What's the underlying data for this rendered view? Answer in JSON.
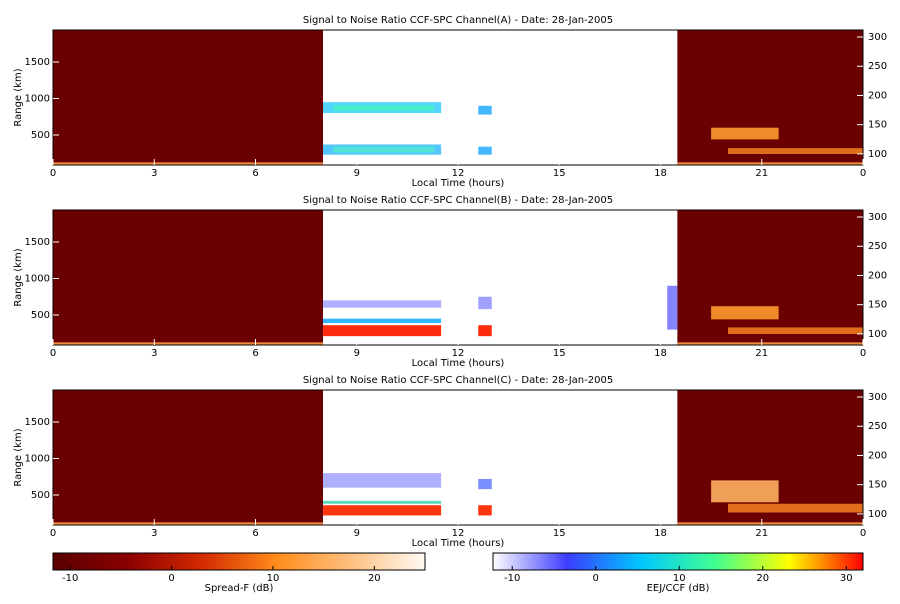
{
  "chart_data": [
    {
      "type": "heatmap",
      "title": "Signal to Noise Ratio CCF-SPC Channel(A) - Date: 28-Jan-2005",
      "xlabel": "Local Time (hours)",
      "ylabel": "Range (km)",
      "xlim": [
        0,
        24
      ],
      "xticks": [
        0,
        3,
        6,
        9,
        12,
        15,
        18,
        21,
        {
          "value": 24,
          "label": "0"
        }
      ],
      "ylim": [
        89,
        1938
      ],
      "yticks": [
        500,
        1000,
        1500
      ],
      "y2lim": [
        81,
        312
      ],
      "y2ticks": [
        100,
        150,
        200,
        250,
        300
      ]
    },
    {
      "type": "heatmap",
      "title": "Signal to Noise Ratio CCF-SPC Channel(B) - Date: 28-Jan-2005",
      "xlabel": "Local Time (hours)",
      "ylabel": "Range (km)",
      "xlim": [
        0,
        24
      ],
      "xticks": [
        0,
        3,
        6,
        9,
        12,
        15,
        18,
        21,
        {
          "value": 24,
          "label": "0"
        }
      ],
      "ylim": [
        89,
        1938
      ],
      "yticks": [
        500,
        1000,
        1500
      ],
      "y2lim": [
        81,
        312
      ],
      "y2ticks": [
        100,
        150,
        200,
        250,
        300
      ]
    },
    {
      "type": "heatmap",
      "title": "Signal to Noise Ratio CCF-SPC Channel(C) - Date: 28-Jan-2005",
      "xlabel": "Local Time (hours)",
      "ylabel": "Range (km)",
      "xlim": [
        0,
        24
      ],
      "xticks": [
        0,
        3,
        6,
        9,
        12,
        15,
        18,
        21,
        {
          "value": 24,
          "label": "0"
        }
      ],
      "ylim": [
        89,
        1938
      ],
      "yticks": [
        500,
        1000,
        1500
      ],
      "y2lim": [
        81,
        312
      ],
      "y2ticks": [
        100,
        150,
        200,
        250,
        300
      ]
    }
  ],
  "colorbars": [
    {
      "label": "Spread-F (dB)",
      "lim": [
        -11.7,
        25
      ],
      "ticks": [
        -10,
        0,
        10,
        20
      ],
      "colors": [
        "#5a0000",
        "#8b0000",
        "#d42a00",
        "#ff8c1a",
        "#ffc080",
        "#fffaf4"
      ]
    },
    {
      "label": "EEJ/CCF (dB)",
      "lim": [
        -12.3,
        32
      ],
      "ticks": [
        -10,
        0,
        10,
        20,
        30
      ],
      "colors": [
        "#ffffff",
        "#3c3cff",
        "#00c8ff",
        "#40ff90",
        "#ffff00",
        "#ff0000"
      ]
    }
  ]
}
